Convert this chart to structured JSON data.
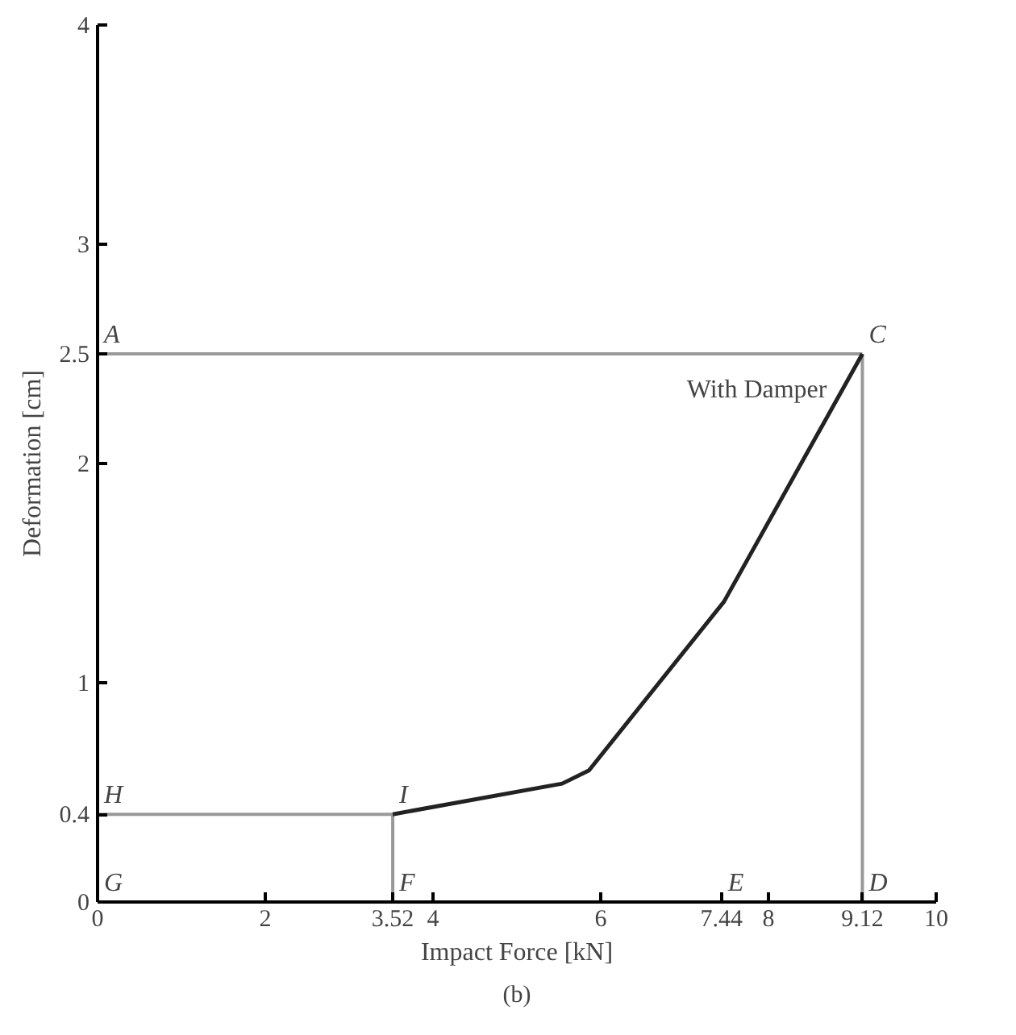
{
  "chart_data": {
    "type": "line",
    "xlabel": "Impact Force [kN]",
    "ylabel": "Deformation [cm]",
    "xlim": [
      0,
      10
    ],
    "ylim": [
      0,
      4
    ],
    "xticks": [
      0,
      2,
      3.52,
      4,
      6,
      7.44,
      8,
      9.12,
      10
    ],
    "yticks": [
      0,
      0.4,
      1,
      2,
      2.5,
      3,
      4
    ],
    "grid": false,
    "marker": "none",
    "line_style": "solid",
    "series": [
      {
        "color": "#999999",
        "x": [
          0,
          9.12
        ],
        "values": [
          2.5,
          2.5
        ]
      },
      {
        "color": "#999999",
        "x": [
          9.12,
          9.12
        ],
        "values": [
          2.5,
          0
        ]
      },
      {
        "color": "#999999",
        "x": [
          0,
          3.52
        ],
        "values": [
          0.4,
          0.4
        ]
      },
      {
        "color": "#999999",
        "x": [
          3.52,
          3.52
        ],
        "values": [
          0.4,
          0
        ]
      },
      {
        "name": "With Damper",
        "color": "#222222",
        "x": [
          3.52,
          5.54,
          5.86,
          7.47,
          9.12
        ],
        "values": [
          0.4,
          0.54,
          0.6,
          1.37,
          2.5
        ]
      }
    ],
    "annotations": [
      {
        "text": "A",
        "x": 0,
        "y": 2.5
      },
      {
        "text": "C",
        "x": 9.12,
        "y": 2.5
      },
      {
        "text": "H",
        "x": 0,
        "y": 0.4
      },
      {
        "text": "I",
        "x": 3.52,
        "y": 0.4
      },
      "G",
      {
        "text": "F",
        "x": 3.52,
        "y": 0
      },
      "E",
      {
        "text": "D",
        "x": 9.12,
        "y": 0
      },
      "(b)"
    ]
  }
}
